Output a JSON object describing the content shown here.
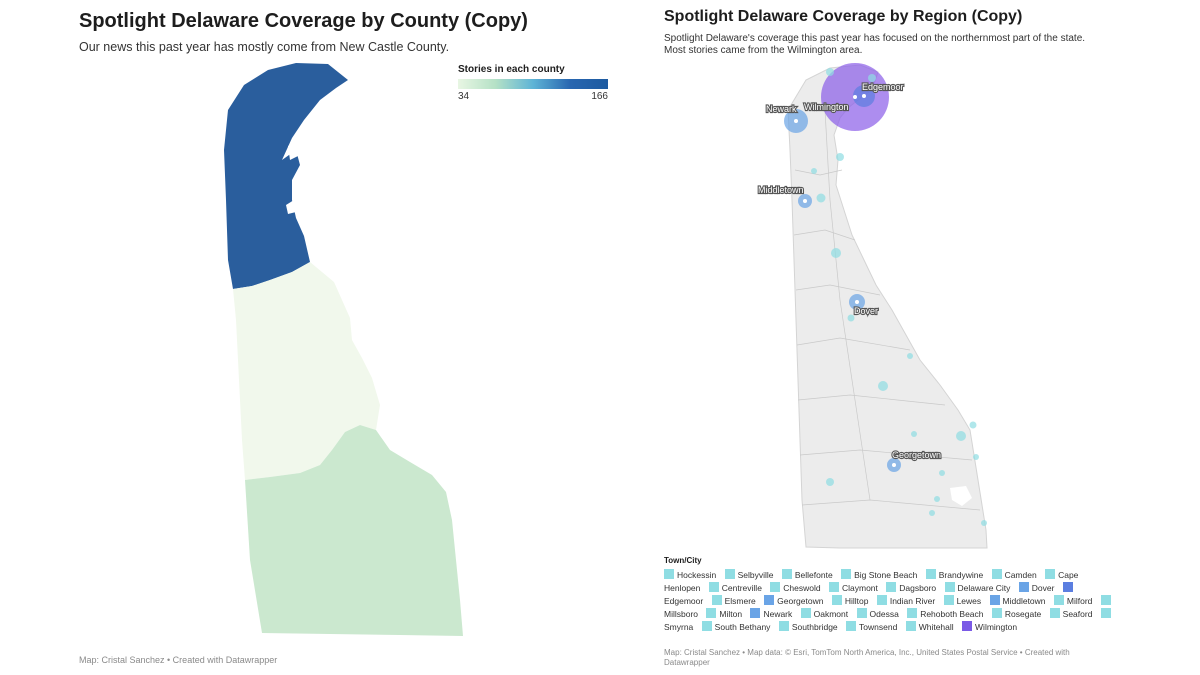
{
  "left": {
    "title": "Spotlight Delaware Coverage by County (Copy)",
    "subtitle": "Our news this past year has mostly come from New Castle County.",
    "legend": {
      "title": "Stories in each county",
      "min": "34",
      "max": "166",
      "gradient_low": "#e8f6e3",
      "gradient_high": "#1d5aa0"
    },
    "counties": [
      {
        "name": "New Castle",
        "color": "#2a5e9d"
      },
      {
        "name": "Kent",
        "color": "#f1f8ec"
      },
      {
        "name": "Sussex",
        "color": "#cbe8cf"
      }
    ],
    "footer": "Map: Cristal Sanchez • Created with Datawrapper"
  },
  "right": {
    "title": "Spotlight Delaware Coverage by Region (Copy)",
    "subtitle_lines": [
      "Spotlight Delaware's coverage this past year has focused on the northernmost part of the state.",
      "Most stories came from the Wilmington area."
    ],
    "map_labels": [
      "Edgemoor",
      "Wilmington",
      "Newark",
      "Middletown",
      "Dover",
      "Georgetown"
    ],
    "legend": {
      "title": "Town/City",
      "items": [
        {
          "name": "Hockessin",
          "color": "#8fdde3"
        },
        {
          "name": "Selbyville",
          "color": "#8fdde3"
        },
        {
          "name": "Bellefonte",
          "color": "#8fdde3"
        },
        {
          "name": "Big Stone Beach",
          "color": "#8fdde3"
        },
        {
          "name": "Brandywine",
          "color": "#8fdde3"
        },
        {
          "name": "Camden",
          "color": "#8fdde3"
        },
        {
          "name": "Cape Henlopen",
          "color": "#8fdde3"
        },
        {
          "name": "Centreville",
          "color": "#8fdde3"
        },
        {
          "name": "Cheswold",
          "color": "#8fdde3"
        },
        {
          "name": "Claymont",
          "color": "#8fdde3"
        },
        {
          "name": "Dagsboro",
          "color": "#8fdde3"
        },
        {
          "name": "Delaware City",
          "color": "#8fdde3"
        },
        {
          "name": "Dover",
          "color": "#6aa4e6"
        },
        {
          "name": "Edgemoor",
          "color": "#5b7ee0"
        },
        {
          "name": "Elsmere",
          "color": "#8fdde3"
        },
        {
          "name": "Georgetown",
          "color": "#6aa4e6"
        },
        {
          "name": "Hilltop",
          "color": "#8fdde3"
        },
        {
          "name": "Indian River",
          "color": "#8fdde3"
        },
        {
          "name": "Lewes",
          "color": "#8fdde3"
        },
        {
          "name": "Middletown",
          "color": "#6aa4e6"
        },
        {
          "name": "Milford",
          "color": "#8fdde3"
        },
        {
          "name": "Millsboro",
          "color": "#8fdde3"
        },
        {
          "name": "Milton",
          "color": "#8fdde3"
        },
        {
          "name": "Newark",
          "color": "#6aa4e6"
        },
        {
          "name": "Oakmont",
          "color": "#8fdde3"
        },
        {
          "name": "Odessa",
          "color": "#8fdde3"
        },
        {
          "name": "Rehoboth Beach",
          "color": "#8fdde3"
        },
        {
          "name": "Rosegate",
          "color": "#8fdde3"
        },
        {
          "name": "Seaford",
          "color": "#8fdde3"
        },
        {
          "name": "Smyrna",
          "color": "#8fdde3"
        },
        {
          "name": "South Bethany",
          "color": "#8fdde3"
        },
        {
          "name": "Southbridge",
          "color": "#8fdde3"
        },
        {
          "name": "Townsend",
          "color": "#8fdde3"
        },
        {
          "name": "Whitehall",
          "color": "#8fdde3"
        },
        {
          "name": "Wilmington",
          "color": "#7a5ae6"
        }
      ]
    },
    "footer": "Map: Cristal Sanchez • Map data: © Esri, TomTom North America, Inc., United States Postal Service  • Created with Datawrapper"
  }
}
